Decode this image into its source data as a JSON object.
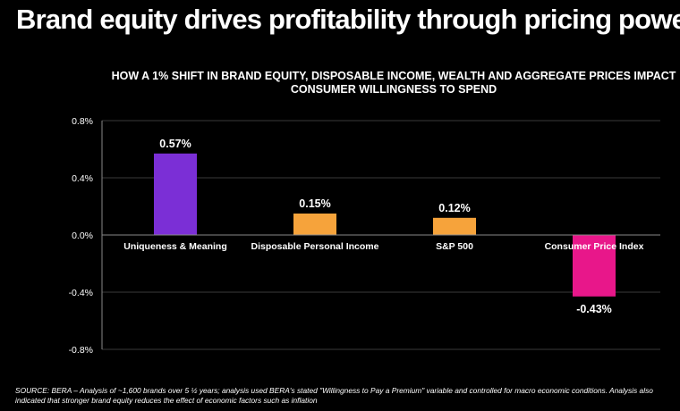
{
  "title": "Brand equity drives profitability through pricing power",
  "source": "SOURCE: BERA – Analysis of ~1,600 brands over 5 ½ years; analysis used BERA's stated \"Willingness to Pay a Premium\" variable and controlled for macro economic conditions. Analysis also indicated that stronger brand equity reduces the effect of economic factors such as inflation",
  "chart_data": {
    "type": "bar",
    "title": "HOW A 1% SHIFT IN BRAND EQUITY, DISPOSABLE INCOME, WEALTH AND AGGREGATE PRICES IMPACT CONSUMER WILLINGNESS TO SPEND",
    "categories": [
      "Uniqueness & Meaning",
      "Disposable Personal Income",
      "S&P 500",
      "Consumer Price Index"
    ],
    "values": [
      0.57,
      0.15,
      0.12,
      -0.43
    ],
    "value_labels": [
      "0.57%",
      "0.15%",
      "0.12%",
      "-0.43%"
    ],
    "colors": [
      "#7b2fd6",
      "#f6a33b",
      "#f6a33b",
      "#e8178a"
    ],
    "yticks": [
      0.8,
      0.4,
      0.0,
      -0.4,
      -0.8
    ],
    "ytick_labels": [
      "0.8%",
      "0.4%",
      "0.0%",
      "-0.4%",
      "-0.8%"
    ],
    "ylim": [
      -0.8,
      0.8
    ],
    "xlabel": "",
    "ylabel": "",
    "grid": false
  }
}
